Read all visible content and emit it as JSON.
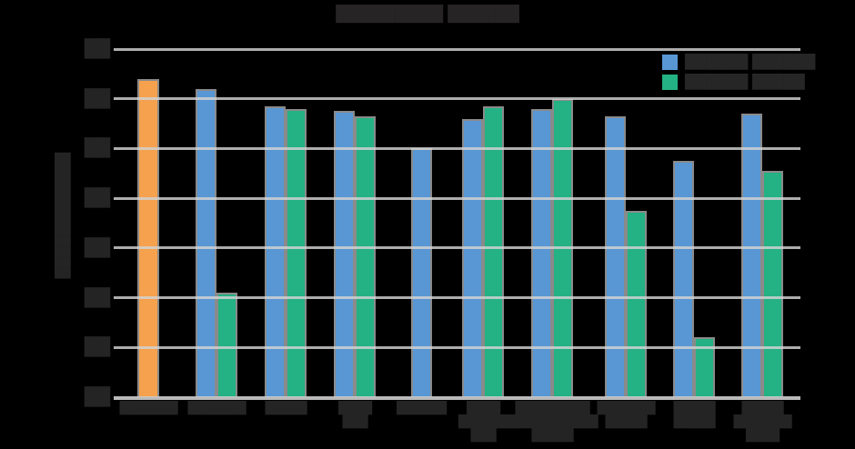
{
  "note": "Static chart screenshot on black background. Every text element (title, axis titles, tick labels, category labels, legend labels) is rendered as solid dark unreadable blocks; block glyphs below reproduce their size/position. Bar values estimated in gridline units (0 = baseline, 7 = top gridline) since y tick labels are unreadable.",
  "colors": {
    "background": "#000000",
    "highlight_bar": "#F5A14E",
    "series_blue": "#5897D4",
    "series_green": "#24B183",
    "bar_outline": "#8A8A8A",
    "gridline": "#D3D3D3",
    "text_blocks": "#242424"
  },
  "title": {
    "text": "█████████ ██████"
  },
  "y_axis": {
    "title": "████████████",
    "tick_labels": [
      "██",
      "██",
      "██",
      "██",
      "██",
      "██",
      "██",
      "██"
    ]
  },
  "legend": {
    "items": [
      {
        "label": "██████ ██████",
        "color": "#5897D4"
      },
      {
        "label": "██████ █████",
        "color": "#24B183"
      }
    ]
  },
  "chart_data": {
    "type": "bar",
    "background": "#000000",
    "ylim": [
      0,
      7
    ],
    "grid": true,
    "legend_position": "top-right",
    "categories": [
      [
        "███████"
      ],
      [
        "███████"
      ],
      [
        "█████"
      ],
      [
        "████",
        "███"
      ],
      [
        "██████"
      ],
      [
        "████",
        "██████",
        "███"
      ],
      [
        "█████████",
        "███████████",
        "█████"
      ],
      [
        "███████",
        "█████"
      ],
      [
        "█████",
        "█████"
      ],
      [
        "█████",
        "███████",
        "████"
      ]
    ],
    "series": [
      {
        "name": "highlight-orange",
        "slot": "single",
        "color": "#F5A14E",
        "values": [
          6.4,
          null,
          null,
          null,
          null,
          null,
          null,
          null,
          null,
          null
        ]
      },
      {
        "name": "legend-item-blue",
        "slot": "left",
        "color": "#5897D4",
        "values": [
          null,
          6.2,
          5.85,
          5.75,
          5.0,
          5.6,
          5.8,
          5.65,
          4.75,
          5.7
        ]
      },
      {
        "name": "legend-item-green",
        "slot": "right",
        "color": "#24B183",
        "values": [
          null,
          2.1,
          5.8,
          5.65,
          null,
          5.85,
          6.0,
          3.75,
          1.2,
          4.55
        ]
      }
    ]
  }
}
